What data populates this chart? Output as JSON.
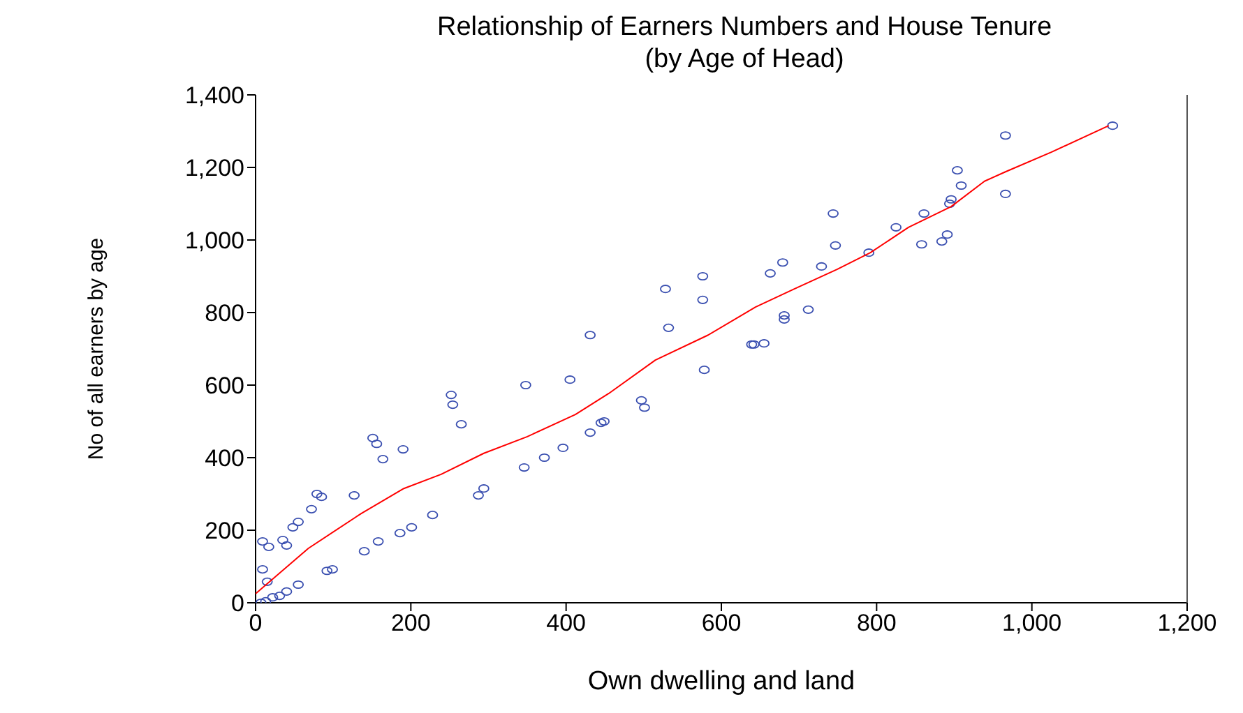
{
  "chart_data": {
    "type": "scatter",
    "title": "Relationship of Earners Numbers  and House Tenure",
    "subtitle": "(by Age of Head)",
    "xlabel": "Own dwelling and land",
    "ylabel": "No of all earners by age",
    "xlim": [
      0,
      1200
    ],
    "xticks": [
      0,
      200,
      400,
      600,
      800,
      {
        "value": 1000,
        "label": "1,000"
      },
      {
        "value": 1200,
        "label": "1,200"
      }
    ],
    "ylim": [
      0,
      1400
    ],
    "yticks": [
      0,
      200,
      400,
      600,
      800,
      {
        "value": 1000,
        "label": "1,000"
      },
      {
        "value": 1200,
        "label": "1,200"
      },
      {
        "value": 1400,
        "label": "1,400"
      }
    ],
    "legend": false,
    "marker": "circle",
    "series": [
      {
        "color": "#3a4fb0",
        "x": [
          9,
          35,
          17,
          40,
          9,
          15,
          55,
          40,
          31,
          22,
          13,
          7,
          48,
          55,
          72,
          79,
          85,
          127,
          92,
          99,
          140,
          158,
          186,
          201,
          228,
          287,
          294,
          346,
          372,
          151,
          156,
          164,
          190,
          252,
          254,
          265,
          348,
          405,
          431,
          532,
          578,
          497,
          501,
          449,
          445,
          431,
          396,
          639,
          744,
          861,
          825,
          891,
          884,
          858,
          747,
          790,
          576,
          576,
          679,
          663,
          729,
          712,
          681,
          681,
          642,
          655,
          966,
          904,
          909,
          896,
          894,
          966,
          1104,
          528
        ],
        "values": [
          169,
          173,
          154,
          158,
          92,
          58,
          50,
          31,
          19,
          15,
          4,
          0,
          208,
          223,
          258,
          300,
          292,
          296,
          88,
          92,
          142,
          169,
          192,
          208,
          242,
          296,
          315,
          373,
          400,
          454,
          438,
          396,
          423,
          573,
          546,
          492,
          600,
          615,
          738,
          758,
          642,
          558,
          538,
          500,
          496,
          469,
          427,
          712,
          1073,
          1073,
          1035,
          1015,
          996,
          988,
          985,
          965,
          900,
          835,
          938,
          908,
          927,
          808,
          792,
          781,
          712,
          715,
          1288,
          1192,
          1150,
          1112,
          1100,
          1127,
          1315,
          865
        ]
      },
      {
        "type": "line",
        "color": "#ff0000",
        "marker": "none",
        "line_style": "solid",
        "x": [
          0,
          68,
          136,
          191,
          239,
          294,
          350,
          412,
          455,
          515,
          583,
          644,
          694,
          749,
          792,
          841,
          896,
          939,
          966,
          1025,
          1099
        ],
        "values": [
          25,
          150,
          246,
          315,
          354,
          412,
          458,
          519,
          577,
          669,
          738,
          815,
          865,
          919,
          965,
          1035,
          1092,
          1162,
          1188,
          1242,
          1315
        ]
      }
    ]
  }
}
